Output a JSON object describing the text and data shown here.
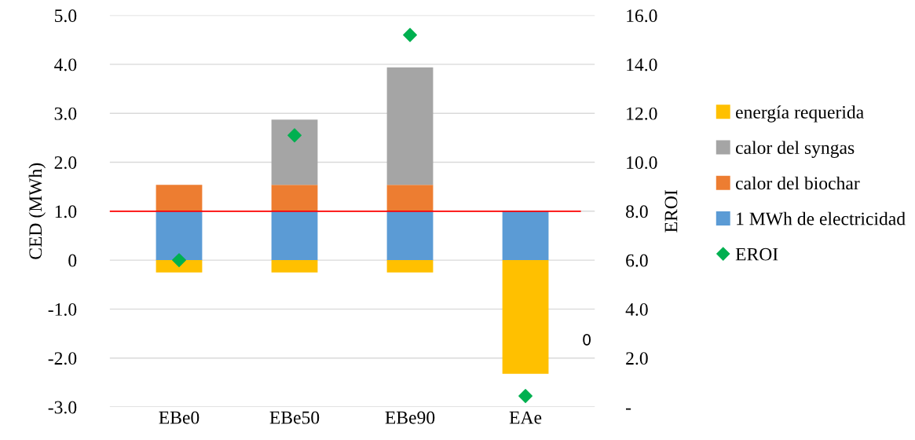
{
  "chart_data": {
    "type": "bar",
    "stacked": true,
    "categories": [
      "EBe0",
      "EBe50",
      "EBe90",
      "EAe"
    ],
    "ylabel": "CED (MWh)",
    "y2label": "EROI",
    "ylim": [
      -3,
      5
    ],
    "yticks": [
      {
        "value": -3,
        "label": "-3.0"
      },
      {
        "value": -2,
        "label": "-2.0"
      },
      {
        "value": -1,
        "label": "-1.0"
      },
      0,
      {
        "value": 1,
        "label": "1.0"
      },
      {
        "value": 2,
        "label": "2.0"
      },
      {
        "value": 3,
        "label": "3.0"
      },
      {
        "value": 4,
        "label": "4.0"
      },
      {
        "value": 5,
        "label": "5.0"
      }
    ],
    "y2lim": [
      0,
      16
    ],
    "y2ticks": [
      {
        "value": 0,
        "label": "-"
      },
      {
        "value": 2,
        "label": "2.0"
      },
      {
        "value": 4,
        "label": "4.0"
      },
      {
        "value": 6,
        "label": "6.0"
      },
      {
        "value": 8,
        "label": "8.0"
      },
      {
        "value": 10,
        "label": "10.0"
      },
      {
        "value": 12,
        "label": "12.0"
      },
      {
        "value": 14,
        "label": "14.0"
      },
      {
        "value": 16,
        "label": "16.0"
      }
    ],
    "series": [
      {
        "name": "1 MWh de electricidad",
        "color": "#5b9bd5",
        "values": [
          1.0,
          1.0,
          1.0,
          1.0
        ]
      },
      {
        "name": "calor del biochar",
        "color": "#ed7d31",
        "values": [
          0.54,
          0.54,
          0.54,
          null
        ]
      },
      {
        "name": "calor del syngas",
        "color": "#a5a5a5",
        "values": [
          null,
          1.33,
          2.4,
          null
        ]
      },
      {
        "name": "energía requerida",
        "color": "#ffc000",
        "values": [
          -0.25,
          -0.25,
          -0.25,
          -2.32
        ]
      },
      {
        "name": "EROI",
        "type": "scatter",
        "axis": "y2",
        "marker": "diamond",
        "color": "#00b050",
        "values": [
          6.0,
          11.1,
          15.2,
          0.45
        ]
      }
    ],
    "ref_lines": [
      {
        "axis": "y",
        "value": 1.0,
        "color": "#ff0000"
      }
    ],
    "annotations": [
      "0"
    ],
    "grid": "y",
    "legend": "right"
  }
}
